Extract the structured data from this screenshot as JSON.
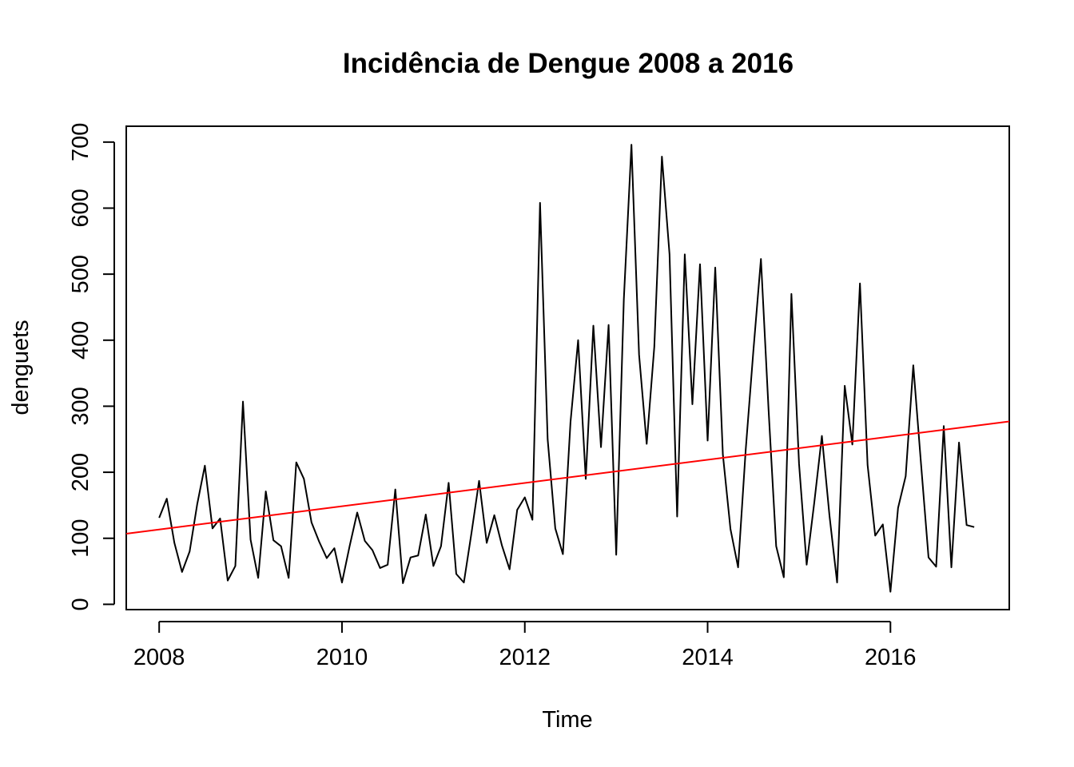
{
  "chart_data": {
    "type": "line",
    "title": "Incidência de Dengue 2008 a 2016",
    "xlabel": "Time",
    "ylabel": "denguets",
    "xlim": [
      2007.64,
      2017.3
    ],
    "ylim": [
      -8,
      724
    ],
    "x_ticks": [
      2008,
      2010,
      2012,
      2014,
      2016
    ],
    "y_ticks": [
      0,
      100,
      200,
      300,
      400,
      500,
      600,
      700
    ],
    "grid": false,
    "legend": "none",
    "x_start": 2008,
    "x_step": 0.08333333,
    "series": [
      {
        "color": "#000000",
        "values": [
          131,
          160,
          93,
          49,
          80,
          152,
          210,
          115,
          130,
          36,
          58,
          307,
          98,
          40,
          171,
          97,
          88,
          40,
          215,
          190,
          124,
          95,
          70,
          85,
          33,
          88,
          139,
          96,
          82,
          55,
          60,
          174,
          32,
          71,
          74,
          136,
          58,
          88,
          184,
          46,
          33,
          108,
          187,
          93,
          135,
          89,
          53,
          143,
          162,
          128,
          608,
          250,
          115,
          76,
          276,
          400,
          190,
          422,
          238,
          423,
          75,
          462,
          696,
          378,
          243,
          390,
          678,
          530,
          133,
          530,
          303,
          515,
          248,
          510,
          227,
          114,
          56,
          234,
          383,
          523,
          295,
          88,
          41,
          470,
          213,
          60,
          154,
          255,
          134,
          33,
          331,
          242,
          486,
          211,
          104,
          121,
          19,
          146,
          194,
          362,
          215,
          71,
          57,
          270,
          56,
          245,
          120,
          117
        ]
      },
      {
        "color": "#ff0000",
        "trend": [
          {
            "x": 2007.64,
            "y": 107
          },
          {
            "x": 2017.3,
            "y": 277
          }
        ]
      }
    ]
  }
}
